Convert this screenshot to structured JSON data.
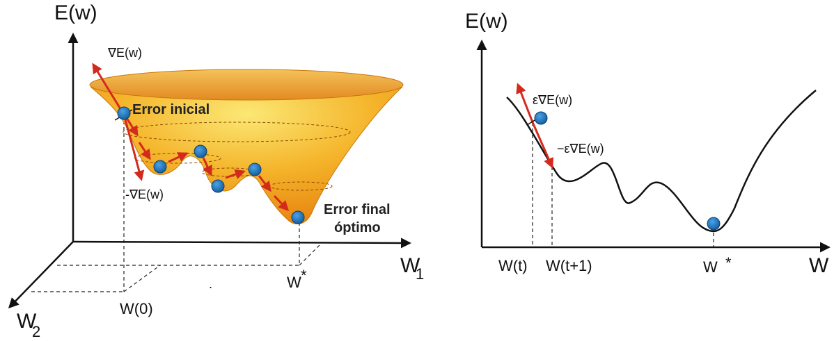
{
  "left_panel": {
    "y_axis_label": "E(w)",
    "w1_label": "W",
    "w1_sub": "1",
    "w2_label": "W",
    "w2_sub": "2",
    "start_label": "W(0)",
    "opt_label": "W",
    "opt_star": "*",
    "grad_pos_label": "∇E(w)",
    "grad_neg_label": "-∇E(w)",
    "error_initial": "Error inicial",
    "error_final_line1": "Error final",
    "error_final_line2": "óptimo"
  },
  "right_panel": {
    "y_axis_label": "E(w)",
    "x_axis_label": "W",
    "wt_label": "W(t)",
    "wt1_label": "W(t+1)",
    "wstar_label": "W",
    "wstar_star": "*",
    "eps_grad_label": "ε∇E(w)",
    "neg_eps_grad_label": "−ε∇E(w)"
  },
  "colors": {
    "surface_light": "#f7d84a",
    "surface_dark": "#e8870a",
    "rim": "#e9a13a",
    "ball": "#1f7bc4",
    "arrow": "#d42a1e",
    "axis": "#111111"
  }
}
